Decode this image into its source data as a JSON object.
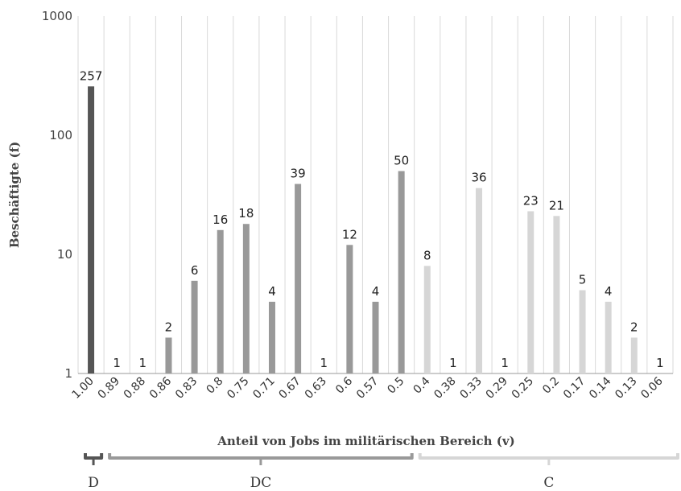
{
  "chart_data": {
    "type": "bar",
    "ylabel": "Beschäftigte (f)",
    "xlabel": "Anteil von Jobs im militärischen Bereich (v)",
    "yscale": "log",
    "ylim": [
      1,
      1000
    ],
    "yticks": [
      "1",
      "10",
      "100",
      "1000"
    ],
    "grid": "vertical",
    "categories": [
      "1.00",
      "0.89",
      "0.88",
      "0.86",
      "0.83",
      "0.8",
      "0.75",
      "0.71",
      "0.67",
      "0.63",
      "0.6",
      "0.57",
      "0.5",
      "0.4",
      "0.38",
      "0.33",
      "0.29",
      "0.25",
      "0.2",
      "0.17",
      "0.14",
      "0.13",
      "0.06"
    ],
    "values": [
      257,
      1,
      1,
      2,
      6,
      16,
      18,
      4,
      39,
      1,
      12,
      4,
      50,
      8,
      1,
      36,
      1,
      23,
      21,
      5,
      4,
      2,
      1
    ],
    "group_of": [
      "D",
      "DC",
      "DC",
      "DC",
      "DC",
      "DC",
      "DC",
      "DC",
      "DC",
      "DC",
      "DC",
      "DC",
      "DC",
      "C",
      "C",
      "C",
      "C",
      "C",
      "C",
      "C",
      "C",
      "C",
      "C"
    ],
    "groups": [
      {
        "name": "D",
        "color": "#555555"
      },
      {
        "name": "DC",
        "color": "#999999"
      },
      {
        "name": "C",
        "color": "#d6d6d6"
      }
    ]
  }
}
